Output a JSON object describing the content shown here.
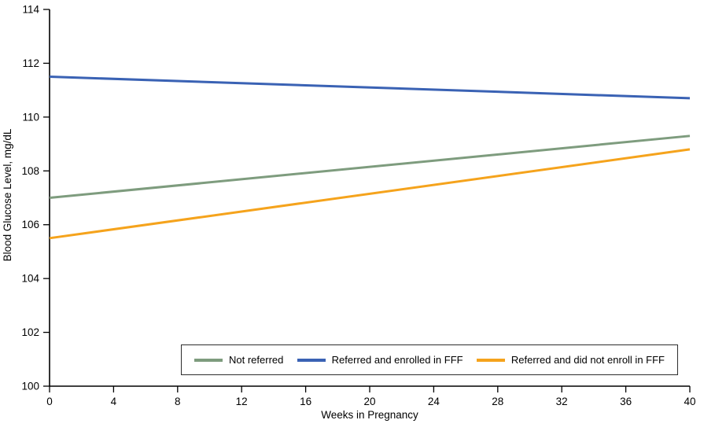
{
  "chart_data": {
    "type": "line",
    "title": "",
    "xlabel": "Weeks in Pregnancy",
    "ylabel": "Blood Glucose Level, mg/dL",
    "xlim": [
      0,
      40
    ],
    "ylim": [
      100,
      114
    ],
    "xticks": [
      0,
      4,
      8,
      12,
      16,
      20,
      24,
      28,
      32,
      36,
      40
    ],
    "yticks": [
      100,
      102,
      104,
      106,
      108,
      110,
      112,
      114
    ],
    "grid": false,
    "legend_position": "inside-bottom",
    "axis_color": "#000000",
    "series": [
      {
        "id": "not-referred",
        "name": "Not referred",
        "color": "#7E9C7E",
        "x": [
          0,
          40
        ],
        "y": [
          107.0,
          109.3
        ]
      },
      {
        "id": "referred-enrolled",
        "name": "Referred and enrolled in FFF",
        "color": "#3A62B4",
        "x": [
          0,
          40
        ],
        "y": [
          111.5,
          110.7
        ]
      },
      {
        "id": "referred-not-enrolled",
        "name": "Referred and did not enroll in FFF",
        "color": "#F5A31C",
        "x": [
          0,
          40
        ],
        "y": [
          105.5,
          108.8
        ]
      }
    ]
  }
}
